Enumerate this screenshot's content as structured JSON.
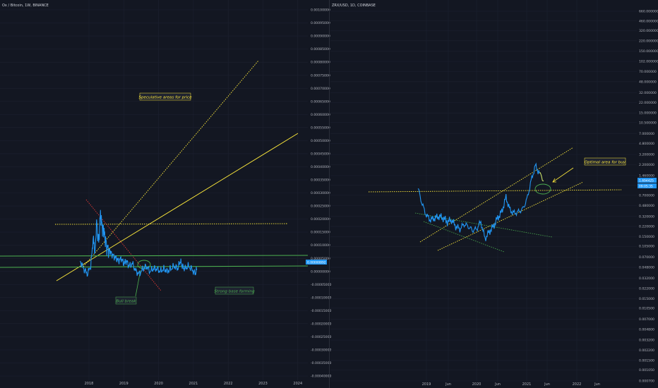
{
  "left_panel": {
    "title": "Ox / Bitcoin, 1W, BINANCE",
    "y_ticks": [
      "0.00100000",
      "0.00095000",
      "0.00090000",
      "0.00085000",
      "0.00080000",
      "0.00075000",
      "0.00070000",
      "0.00065000",
      "0.00060000",
      "0.00055000",
      "0.00050000",
      "0.00045000",
      "0.00040000",
      "0.00035000",
      "0.00030000",
      "0.00025000",
      "0.00020000",
      "0.00015000",
      "0.00010000",
      "0.00005000",
      "0.00000000",
      "-0.00005000",
      "-0.00010000",
      "-0.00015000",
      "-0.00020000",
      "-0.00025000",
      "-0.00030000",
      "-0.00035000",
      "-0.00040000"
    ],
    "x_ticks": [
      "2018",
      "2019",
      "2020",
      "2021",
      "2022",
      "2023",
      "2024"
    ],
    "price_tag": "0.00000892",
    "annotations": {
      "speculative": "Speculative areas for price",
      "bull_break": "Bull break",
      "strong_base": "Strong base forming"
    }
  },
  "right_panel": {
    "title": "ZRX/USD, 1D, COINBASE",
    "y_ticks": [
      "660.000000",
      "460.000000",
      "320.000000",
      "220.000000",
      "150.000000",
      "102.000000",
      "70.000000",
      "48.000000",
      "32.000000",
      "22.000000",
      "15.000000",
      "10.500000",
      "7.000000",
      "4.800000",
      "3.200000",
      "2.200000",
      "1.460000",
      "1.020000",
      "0.700000",
      "0.480000",
      "0.320000",
      "0.220000",
      "0.150000",
      "0.105000",
      "0.070000",
      "0.048000",
      "0.032000",
      "0.022000",
      "0.015000",
      "0.010500",
      "0.007000",
      "0.004800",
      "0.003200",
      "0.002200",
      "0.001500",
      "0.001050",
      "0.000700"
    ],
    "x_ticks": [
      "2019",
      "Jun",
      "2020",
      "Jun",
      "2021",
      "Jun",
      "2022",
      "Jun"
    ],
    "price_tag": "1.694425",
    "time_tag": "09:05:35",
    "annotations": {
      "optimal": "Optimal area for buy"
    }
  },
  "colors": {
    "background": "#131722",
    "price_line": "#2196f3",
    "projection": "#c8e06a",
    "yellow_line": "#ffeb3b",
    "green_line": "#4caf50",
    "red_line": "#e53935",
    "annotation_box": "#1e2230"
  },
  "chart_data": [
    {
      "type": "line",
      "title": "Ox / Bitcoin, 1W, BINANCE",
      "ylim": [
        -0.0004,
        0.001
      ],
      "xlim": [
        2017.6,
        2024.1
      ],
      "series": [
        {
          "x": [
            2017.75,
            2017.85,
            2017.95,
            2018.05,
            2018.12,
            2018.18,
            2018.22,
            2018.28,
            2018.33,
            2018.38,
            2018.42,
            2018.47,
            2018.52,
            2018.58,
            2018.63,
            2018.7,
            2018.78,
            2018.85,
            2018.93,
            2019.0,
            2019.08,
            2019.15,
            2019.25,
            2019.35,
            2019.45,
            2019.55,
            2019.65,
            2019.75,
            2019.85,
            2019.95,
            2020.05,
            2020.15,
            2020.25,
            2020.35,
            2020.45,
            2020.55,
            2020.62,
            2020.68,
            2020.75,
            2020.85,
            2020.95,
            2021.05,
            2021.1
          ],
          "values": [
            4e-05,
            1e-05,
            -1e-05,
            2e-05,
            0.00012,
            8e-05,
            0.00019,
            0.00011,
            0.00022,
            0.00017,
            0.00016,
            0.00012,
            9e-05,
            8e-05,
            7e-05,
            6e-05,
            5e-05,
            4e-05,
            5e-05,
            3e-05,
            4e-05,
            2e-05,
            3e-05,
            0.0,
            -1e-05,
            1e-05,
            2e-05,
            0.0,
            1e-05,
            1e-05,
            0.0,
            1e-05,
            0.0,
            1e-05,
            2e-05,
            1e-05,
            4e-05,
            2e-05,
            1e-05,
            2e-05,
            1e-05,
            -1e-05,
            1e-05
          ]
        }
      ]
    },
    {
      "type": "line",
      "title": "ZRX/USD, 1D, COINBASE",
      "scale": "log",
      "ylim": [
        0.0007,
        660
      ],
      "series": [
        {
          "x": [
            "2018-11",
            "2018-12",
            "2019-01",
            "2019-02",
            "2019-03",
            "2019-04",
            "2019-05",
            "2019-06",
            "2019-07",
            "2019-08",
            "2019-09",
            "2019-10",
            "2019-11",
            "2019-12",
            "2020-01",
            "2020-02",
            "2020-03",
            "2020-04",
            "2020-05",
            "2020-06",
            "2020-07",
            "2020-08",
            "2020-09",
            "2020-10",
            "2020-11",
            "2020-12",
            "2021-01",
            "2021-02",
            "2021-03",
            "2021-04"
          ],
          "values": [
            0.9,
            0.5,
            0.33,
            0.28,
            0.3,
            0.32,
            0.3,
            0.26,
            0.28,
            0.22,
            0.2,
            0.24,
            0.22,
            0.19,
            0.2,
            0.26,
            0.14,
            0.18,
            0.22,
            0.3,
            0.38,
            0.65,
            0.4,
            0.36,
            0.38,
            0.42,
            0.6,
            1.2,
            2.1,
            1.6
          ]
        },
        {
          "x": [
            "2021-04",
            "2021-05"
          ],
          "values": [
            1.6,
            1.2
          ]
        }
      ]
    }
  ]
}
